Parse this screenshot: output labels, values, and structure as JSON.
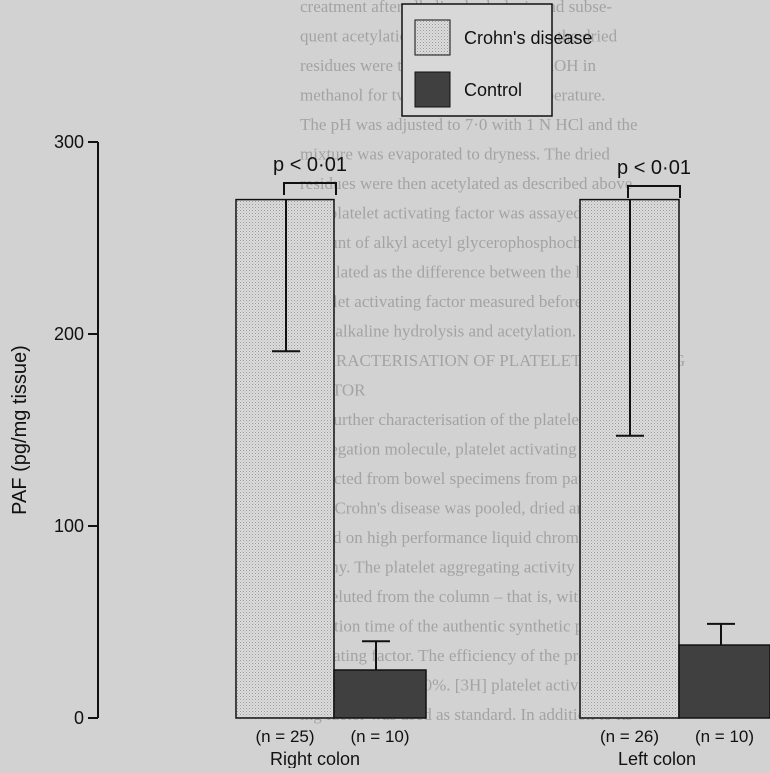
{
  "chart_data": {
    "type": "bar",
    "ylabel": "PAF (pg/mg tissue)",
    "ylim": [
      0,
      300
    ],
    "yticks": [
      0,
      100,
      200,
      300
    ],
    "grid": false,
    "legend_position": "top-center",
    "groups": [
      {
        "label": "Right colon",
        "bars": [
          {
            "series": "Crohn's disease",
            "value": 270,
            "error": 79,
            "n_label": "(n = 25)"
          },
          {
            "series": "Control",
            "value": 25,
            "error": 15,
            "n_label": "(n = 10)"
          }
        ],
        "significance": "p < 0·01"
      },
      {
        "label": "Left colon",
        "bars": [
          {
            "series": "Crohn's disease",
            "value": 270,
            "error": 123,
            "n_label": "(n = 26)"
          },
          {
            "series": "Control",
            "value": 38,
            "error": 11,
            "n_label": "(n = 10)"
          }
        ],
        "significance": "p < 0·01"
      }
    ],
    "series": [
      {
        "name": "Crohn's disease",
        "color": "#dcdcdc"
      },
      {
        "name": "Control",
        "color": "#404040"
      }
    ]
  },
  "background_text": [
    "creatment after alkaline hydrolysis and subse-",
    "quent acetylation. Briefly, aliquots of the dried",
    "residues were treated with 0·03 N NaOH in",
    "methanol for two hours at room temperature.",
    "The pH was adjusted to 7·0 with 1 N HCl and the",
    "mixture was evaporated to dryness. The dried",
    "residues were then acetylated as described above",
    "and platelet activating factor was assayed. The",
    "amount of alkyl acetyl glycerophosphocholine was",
    "calculated as the difference between the levels of",
    "platelet activating factor measured before and",
    "after alkaline hydrolysis and acetylation.",
    "CHARACTERISATION OF PLATELET ACTIVATING",
    "FACTOR",
    "For further characterisation of the platelet",
    "aggregation molecule, platelet activating factor",
    "extracted from bowel specimens from patients",
    "with Crohn's disease was pooled, dried and",
    "eluted on high performance liquid chromato-",
    "graphy. The platelet aggregating activity",
    "was eluted from the column – that is, with a",
    "retention time of the authentic synthetic platelet",
    "activating factor. The efficiency of the pro-",
    "cedure averaged 80%. [3H] platelet activat-",
    "ing factor was used as standard. In addition to its"
  ]
}
